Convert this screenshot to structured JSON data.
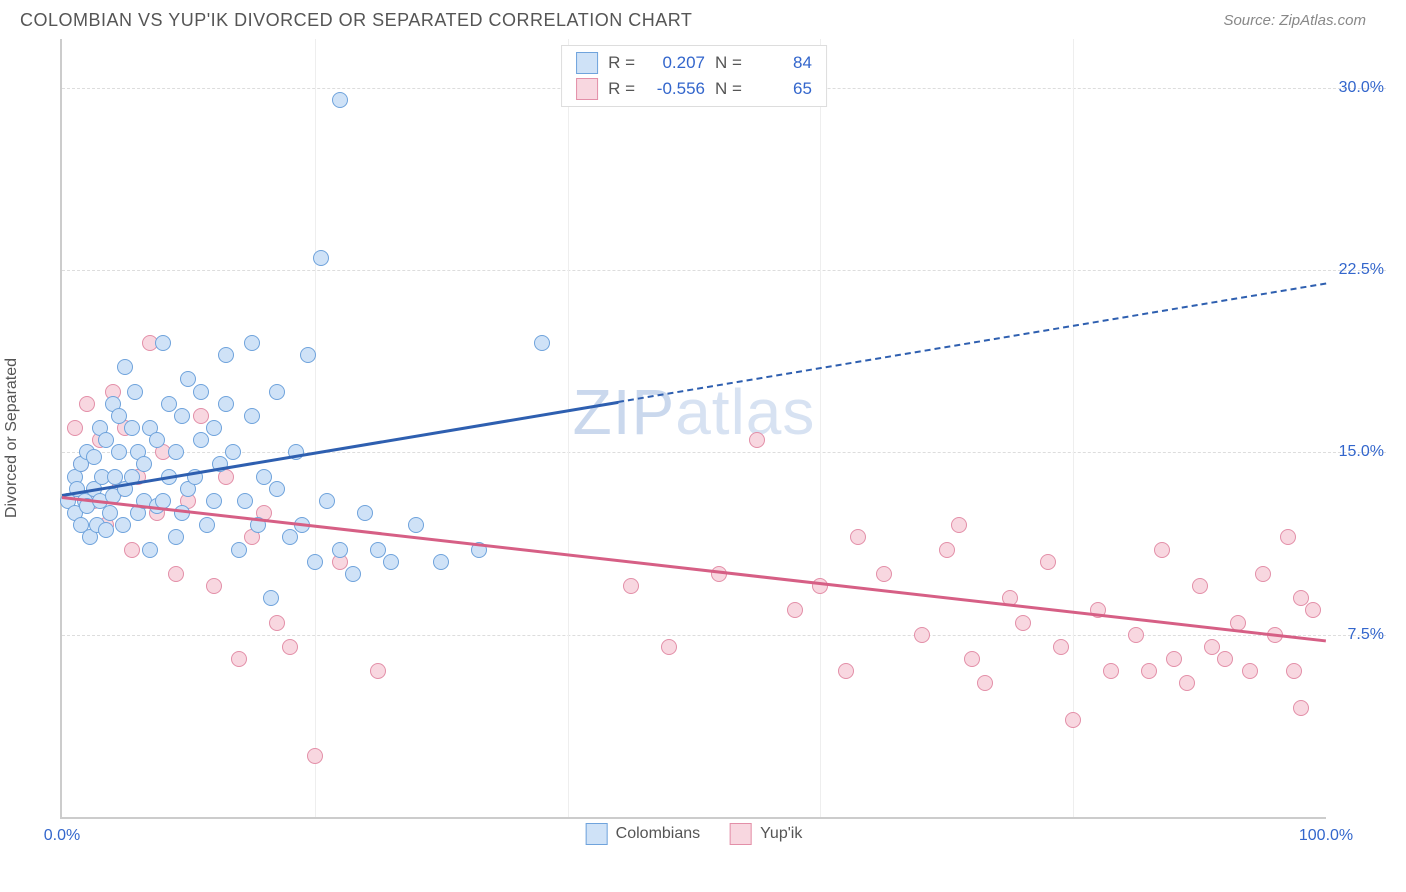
{
  "header": {
    "title": "COLOMBIAN VS YUP'IK DIVORCED OR SEPARATED CORRELATION CHART",
    "source": "Source: ZipAtlas.com"
  },
  "axes": {
    "y_label": "Divorced or Separated",
    "x_min": 0,
    "x_max": 100,
    "y_min": 0,
    "y_max": 32,
    "x_ticks": [
      {
        "v": 0,
        "label": "0.0%"
      },
      {
        "v": 20,
        "label": ""
      },
      {
        "v": 40,
        "label": ""
      },
      {
        "v": 60,
        "label": ""
      },
      {
        "v": 80,
        "label": ""
      },
      {
        "v": 100,
        "label": "100.0%"
      }
    ],
    "y_ticks": [
      {
        "v": 7.5,
        "label": "7.5%"
      },
      {
        "v": 15.0,
        "label": "15.0%"
      },
      {
        "v": 22.5,
        "label": "22.5%"
      },
      {
        "v": 30.0,
        "label": "30.0%"
      }
    ],
    "grid_color": "#dddddd"
  },
  "series": {
    "colombians": {
      "label": "Colombians",
      "fill": "#cfe2f7",
      "stroke": "#6fa3dc",
      "r_value": "0.207",
      "n_value": "84",
      "marker_size": 16,
      "trend": {
        "x1": 0,
        "y1": 13.3,
        "x2_solid": 44,
        "x2": 100,
        "y2": 22.0,
        "color": "#2e5fb0"
      },
      "points": [
        [
          0.5,
          13.0
        ],
        [
          1.0,
          12.5
        ],
        [
          1.0,
          14.0
        ],
        [
          1.2,
          13.5
        ],
        [
          1.5,
          12.0
        ],
        [
          1.5,
          14.5
        ],
        [
          1.8,
          13.0
        ],
        [
          2.0,
          12.8
        ],
        [
          2.0,
          15.0
        ],
        [
          2.2,
          11.5
        ],
        [
          2.5,
          13.5
        ],
        [
          2.5,
          14.8
        ],
        [
          2.8,
          12.0
        ],
        [
          3.0,
          13.0
        ],
        [
          3.0,
          16.0
        ],
        [
          3.2,
          14.0
        ],
        [
          3.5,
          11.8
        ],
        [
          3.5,
          15.5
        ],
        [
          3.8,
          12.5
        ],
        [
          4.0,
          13.2
        ],
        [
          4.0,
          17.0
        ],
        [
          4.2,
          14.0
        ],
        [
          4.5,
          15.0
        ],
        [
          4.5,
          16.5
        ],
        [
          4.8,
          12.0
        ],
        [
          5.0,
          13.5
        ],
        [
          5.0,
          18.5
        ],
        [
          5.5,
          14.0
        ],
        [
          5.5,
          16.0
        ],
        [
          5.8,
          17.5
        ],
        [
          6.0,
          12.5
        ],
        [
          6.0,
          15.0
        ],
        [
          6.5,
          13.0
        ],
        [
          6.5,
          14.5
        ],
        [
          7.0,
          11.0
        ],
        [
          7.0,
          16.0
        ],
        [
          7.5,
          12.8
        ],
        [
          7.5,
          15.5
        ],
        [
          8.0,
          13.0
        ],
        [
          8.0,
          19.5
        ],
        [
          8.5,
          14.0
        ],
        [
          8.5,
          17.0
        ],
        [
          9.0,
          11.5
        ],
        [
          9.0,
          15.0
        ],
        [
          9.5,
          12.5
        ],
        [
          9.5,
          16.5
        ],
        [
          10.0,
          13.5
        ],
        [
          10.0,
          18.0
        ],
        [
          10.5,
          14.0
        ],
        [
          11.0,
          15.5
        ],
        [
          11.0,
          17.5
        ],
        [
          11.5,
          12.0
        ],
        [
          12.0,
          13.0
        ],
        [
          12.0,
          16.0
        ],
        [
          12.5,
          14.5
        ],
        [
          13.0,
          17.0
        ],
        [
          13.0,
          19.0
        ],
        [
          13.5,
          15.0
        ],
        [
          14.0,
          11.0
        ],
        [
          14.5,
          13.0
        ],
        [
          15.0,
          16.5
        ],
        [
          15.0,
          19.5
        ],
        [
          15.5,
          12.0
        ],
        [
          16.0,
          14.0
        ],
        [
          16.5,
          9.0
        ],
        [
          17.0,
          13.5
        ],
        [
          17.0,
          17.5
        ],
        [
          18.0,
          11.5
        ],
        [
          18.5,
          15.0
        ],
        [
          19.0,
          12.0
        ],
        [
          19.5,
          19.0
        ],
        [
          20.0,
          10.5
        ],
        [
          20.5,
          23.0
        ],
        [
          21.0,
          13.0
        ],
        [
          22.0,
          11.0
        ],
        [
          22.0,
          29.5
        ],
        [
          23.0,
          10.0
        ],
        [
          24.0,
          12.5
        ],
        [
          25.0,
          11.0
        ],
        [
          26.0,
          10.5
        ],
        [
          28.0,
          12.0
        ],
        [
          30.0,
          10.5
        ],
        [
          33.0,
          11.0
        ],
        [
          38.0,
          19.5
        ]
      ]
    },
    "yupik": {
      "label": "Yup'ik",
      "fill": "#f8d7e0",
      "stroke": "#e38fa8",
      "r_value": "-0.556",
      "n_value": "65",
      "marker_size": 16,
      "trend": {
        "x1": 0,
        "y1": 13.2,
        "x2_solid": 100,
        "x2": 100,
        "y2": 7.3,
        "color": "#d65f85"
      },
      "points": [
        [
          1.0,
          16.0
        ],
        [
          1.5,
          14.5
        ],
        [
          2.0,
          17.0
        ],
        [
          2.5,
          13.0
        ],
        [
          3.0,
          15.5
        ],
        [
          3.5,
          12.0
        ],
        [
          4.0,
          17.5
        ],
        [
          4.5,
          13.5
        ],
        [
          5.0,
          16.0
        ],
        [
          5.5,
          11.0
        ],
        [
          6.0,
          14.0
        ],
        [
          7.0,
          19.5
        ],
        [
          7.5,
          12.5
        ],
        [
          8.0,
          15.0
        ],
        [
          9.0,
          10.0
        ],
        [
          10.0,
          13.0
        ],
        [
          11.0,
          16.5
        ],
        [
          12.0,
          9.5
        ],
        [
          13.0,
          14.0
        ],
        [
          14.0,
          6.5
        ],
        [
          15.0,
          11.5
        ],
        [
          16.0,
          12.5
        ],
        [
          17.0,
          8.0
        ],
        [
          18.0,
          7.0
        ],
        [
          20.0,
          2.5
        ],
        [
          22.0,
          10.5
        ],
        [
          25.0,
          6.0
        ],
        [
          45.0,
          9.5
        ],
        [
          48.0,
          7.0
        ],
        [
          52.0,
          10.0
        ],
        [
          55.0,
          15.5
        ],
        [
          58.0,
          8.5
        ],
        [
          60.0,
          9.5
        ],
        [
          62.0,
          6.0
        ],
        [
          63.0,
          11.5
        ],
        [
          65.0,
          10.0
        ],
        [
          68.0,
          7.5
        ],
        [
          70.0,
          11.0
        ],
        [
          71.0,
          12.0
        ],
        [
          72.0,
          6.5
        ],
        [
          73.0,
          5.5
        ],
        [
          75.0,
          9.0
        ],
        [
          76.0,
          8.0
        ],
        [
          78.0,
          10.5
        ],
        [
          79.0,
          7.0
        ],
        [
          80.0,
          4.0
        ],
        [
          82.0,
          8.5
        ],
        [
          83.0,
          6.0
        ],
        [
          85.0,
          7.5
        ],
        [
          86.0,
          6.0
        ],
        [
          87.0,
          11.0
        ],
        [
          88.0,
          6.5
        ],
        [
          89.0,
          5.5
        ],
        [
          90.0,
          9.5
        ],
        [
          91.0,
          7.0
        ],
        [
          92.0,
          6.5
        ],
        [
          93.0,
          8.0
        ],
        [
          94.0,
          6.0
        ],
        [
          95.0,
          10.0
        ],
        [
          96.0,
          7.5
        ],
        [
          97.0,
          11.5
        ],
        [
          97.5,
          6.0
        ],
        [
          98.0,
          9.0
        ],
        [
          98.0,
          4.5
        ],
        [
          99.0,
          8.5
        ]
      ]
    }
  },
  "watermark": "ZIPatlas",
  "legend_labels": {
    "r": "R =",
    "n": "N ="
  }
}
